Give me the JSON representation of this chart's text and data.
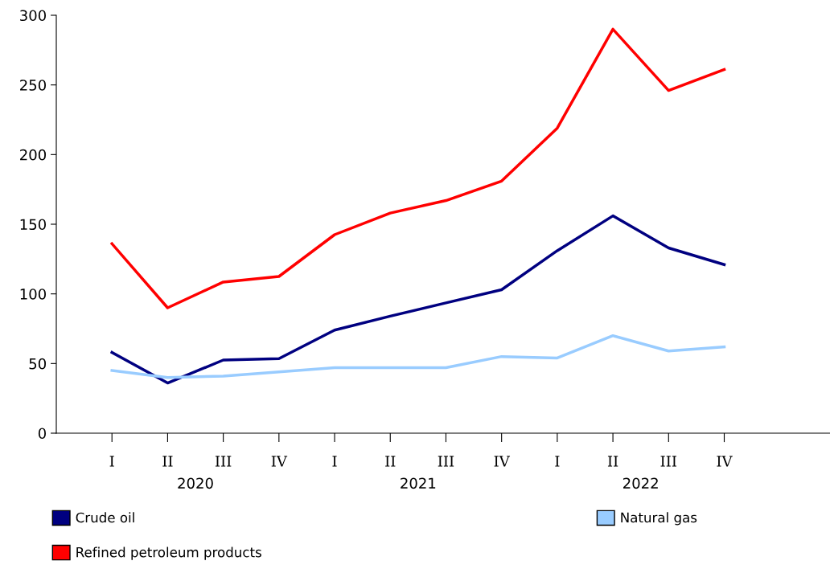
{
  "chart_data": {
    "type": "line",
    "categories": [
      "I",
      "II",
      "III",
      "IV",
      "I",
      "II",
      "III",
      "IV",
      "I",
      "II",
      "III",
      "IV"
    ],
    "annotations": [
      "2020",
      "2021",
      "2022"
    ],
    "ylim": [
      0,
      300
    ],
    "yticks": [
      0,
      50,
      100,
      150,
      200,
      250,
      300
    ],
    "grid": false,
    "legend": "bottom",
    "line_style": "solid",
    "marker": "none",
    "series": [
      {
        "name": "Crude oil",
        "color": "#000080",
        "values": [
          58,
          36,
          52.5,
          53.5,
          74,
          84,
          93.5,
          103,
          131,
          156,
          133,
          121
        ]
      },
      {
        "name": "Natural gas",
        "color": "#99ccff",
        "values": [
          45,
          40,
          41,
          44,
          47,
          47,
          47,
          55,
          54,
          70,
          59,
          62
        ]
      },
      {
        "name": "Refined petroleum products",
        "color": "#ff0000",
        "values": [
          136,
          90,
          108.5,
          112.5,
          142.5,
          158,
          167,
          181,
          219,
          290,
          246,
          261
        ]
      }
    ]
  }
}
